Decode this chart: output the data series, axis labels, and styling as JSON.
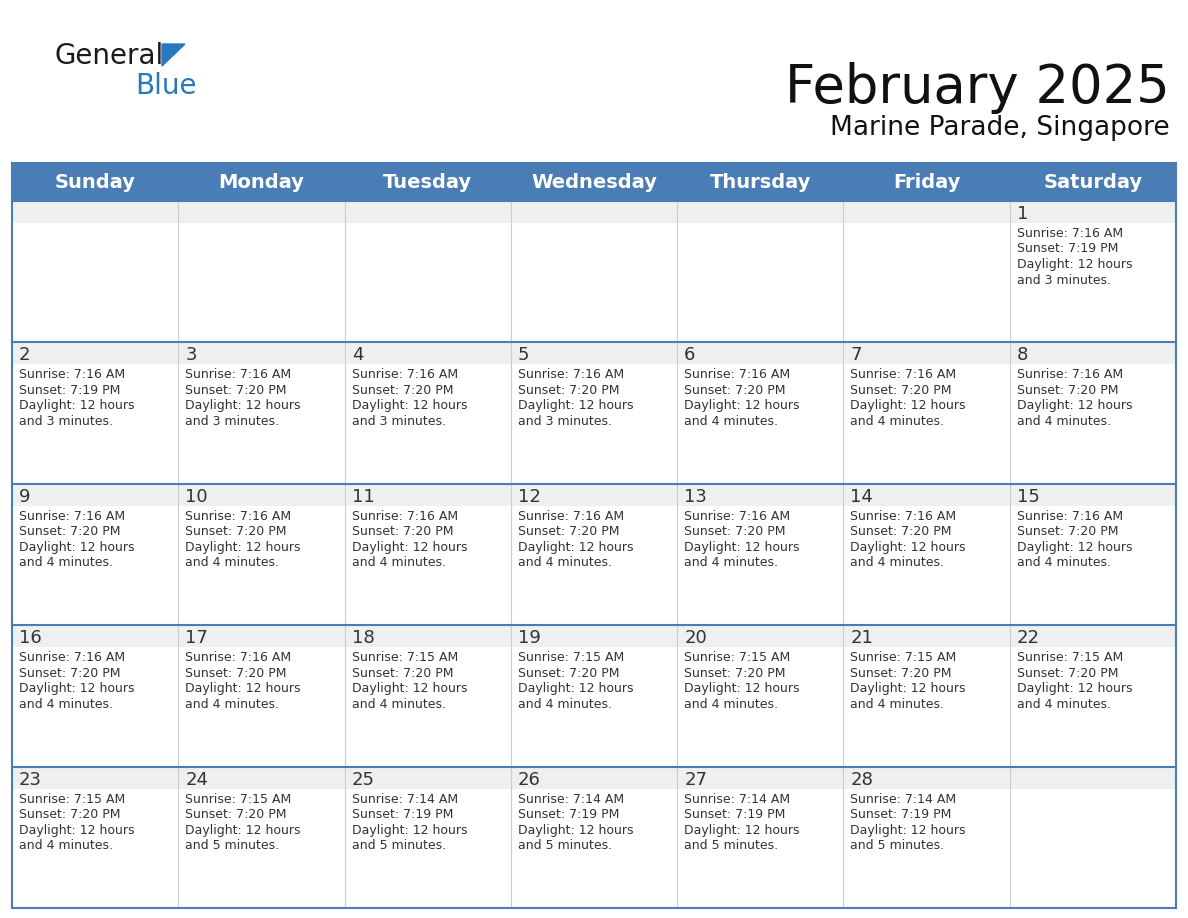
{
  "title": "February 2025",
  "subtitle": "Marine Parade, Singapore",
  "header_color": "#4A7DB5",
  "header_text_color": "#FFFFFF",
  "cell_bg_light": "#EFEFEF",
  "cell_bg_white": "#FFFFFF",
  "border_color": "#4A7DB5",
  "text_color": "#333333",
  "days_of_week": [
    "Sunday",
    "Monday",
    "Tuesday",
    "Wednesday",
    "Thursday",
    "Friday",
    "Saturday"
  ],
  "title_fontsize": 38,
  "subtitle_fontsize": 19,
  "day_header_fontsize": 14,
  "cell_day_fontsize": 13,
  "cell_text_fontsize": 9,
  "logo_general_color": "#1a1a1a",
  "logo_blue_color": "#2878C0",
  "logo_triangle_color": "#2878C0",
  "weeks": [
    [
      {
        "day": null,
        "sunrise": null,
        "sunset": null,
        "daylight": null
      },
      {
        "day": null,
        "sunrise": null,
        "sunset": null,
        "daylight": null
      },
      {
        "day": null,
        "sunrise": null,
        "sunset": null,
        "daylight": null
      },
      {
        "day": null,
        "sunrise": null,
        "sunset": null,
        "daylight": null
      },
      {
        "day": null,
        "sunrise": null,
        "sunset": null,
        "daylight": null
      },
      {
        "day": null,
        "sunrise": null,
        "sunset": null,
        "daylight": null
      },
      {
        "day": 1,
        "sunrise": "7:16 AM",
        "sunset": "7:19 PM",
        "daylight": "12 hours\nand 3 minutes."
      }
    ],
    [
      {
        "day": 2,
        "sunrise": "7:16 AM",
        "sunset": "7:19 PM",
        "daylight": "12 hours\nand 3 minutes."
      },
      {
        "day": 3,
        "sunrise": "7:16 AM",
        "sunset": "7:20 PM",
        "daylight": "12 hours\nand 3 minutes."
      },
      {
        "day": 4,
        "sunrise": "7:16 AM",
        "sunset": "7:20 PM",
        "daylight": "12 hours\nand 3 minutes."
      },
      {
        "day": 5,
        "sunrise": "7:16 AM",
        "sunset": "7:20 PM",
        "daylight": "12 hours\nand 3 minutes."
      },
      {
        "day": 6,
        "sunrise": "7:16 AM",
        "sunset": "7:20 PM",
        "daylight": "12 hours\nand 4 minutes."
      },
      {
        "day": 7,
        "sunrise": "7:16 AM",
        "sunset": "7:20 PM",
        "daylight": "12 hours\nand 4 minutes."
      },
      {
        "day": 8,
        "sunrise": "7:16 AM",
        "sunset": "7:20 PM",
        "daylight": "12 hours\nand 4 minutes."
      }
    ],
    [
      {
        "day": 9,
        "sunrise": "7:16 AM",
        "sunset": "7:20 PM",
        "daylight": "12 hours\nand 4 minutes."
      },
      {
        "day": 10,
        "sunrise": "7:16 AM",
        "sunset": "7:20 PM",
        "daylight": "12 hours\nand 4 minutes."
      },
      {
        "day": 11,
        "sunrise": "7:16 AM",
        "sunset": "7:20 PM",
        "daylight": "12 hours\nand 4 minutes."
      },
      {
        "day": 12,
        "sunrise": "7:16 AM",
        "sunset": "7:20 PM",
        "daylight": "12 hours\nand 4 minutes."
      },
      {
        "day": 13,
        "sunrise": "7:16 AM",
        "sunset": "7:20 PM",
        "daylight": "12 hours\nand 4 minutes."
      },
      {
        "day": 14,
        "sunrise": "7:16 AM",
        "sunset": "7:20 PM",
        "daylight": "12 hours\nand 4 minutes."
      },
      {
        "day": 15,
        "sunrise": "7:16 AM",
        "sunset": "7:20 PM",
        "daylight": "12 hours\nand 4 minutes."
      }
    ],
    [
      {
        "day": 16,
        "sunrise": "7:16 AM",
        "sunset": "7:20 PM",
        "daylight": "12 hours\nand 4 minutes."
      },
      {
        "day": 17,
        "sunrise": "7:16 AM",
        "sunset": "7:20 PM",
        "daylight": "12 hours\nand 4 minutes."
      },
      {
        "day": 18,
        "sunrise": "7:15 AM",
        "sunset": "7:20 PM",
        "daylight": "12 hours\nand 4 minutes."
      },
      {
        "day": 19,
        "sunrise": "7:15 AM",
        "sunset": "7:20 PM",
        "daylight": "12 hours\nand 4 minutes."
      },
      {
        "day": 20,
        "sunrise": "7:15 AM",
        "sunset": "7:20 PM",
        "daylight": "12 hours\nand 4 minutes."
      },
      {
        "day": 21,
        "sunrise": "7:15 AM",
        "sunset": "7:20 PM",
        "daylight": "12 hours\nand 4 minutes."
      },
      {
        "day": 22,
        "sunrise": "7:15 AM",
        "sunset": "7:20 PM",
        "daylight": "12 hours\nand 4 minutes."
      }
    ],
    [
      {
        "day": 23,
        "sunrise": "7:15 AM",
        "sunset": "7:20 PM",
        "daylight": "12 hours\nand 4 minutes."
      },
      {
        "day": 24,
        "sunrise": "7:15 AM",
        "sunset": "7:20 PM",
        "daylight": "12 hours\nand 5 minutes."
      },
      {
        "day": 25,
        "sunrise": "7:14 AM",
        "sunset": "7:19 PM",
        "daylight": "12 hours\nand 5 minutes."
      },
      {
        "day": 26,
        "sunrise": "7:14 AM",
        "sunset": "7:19 PM",
        "daylight": "12 hours\nand 5 minutes."
      },
      {
        "day": 27,
        "sunrise": "7:14 AM",
        "sunset": "7:19 PM",
        "daylight": "12 hours\nand 5 minutes."
      },
      {
        "day": 28,
        "sunrise": "7:14 AM",
        "sunset": "7:19 PM",
        "daylight": "12 hours\nand 5 minutes."
      },
      {
        "day": null,
        "sunrise": null,
        "sunset": null,
        "daylight": null
      }
    ]
  ]
}
